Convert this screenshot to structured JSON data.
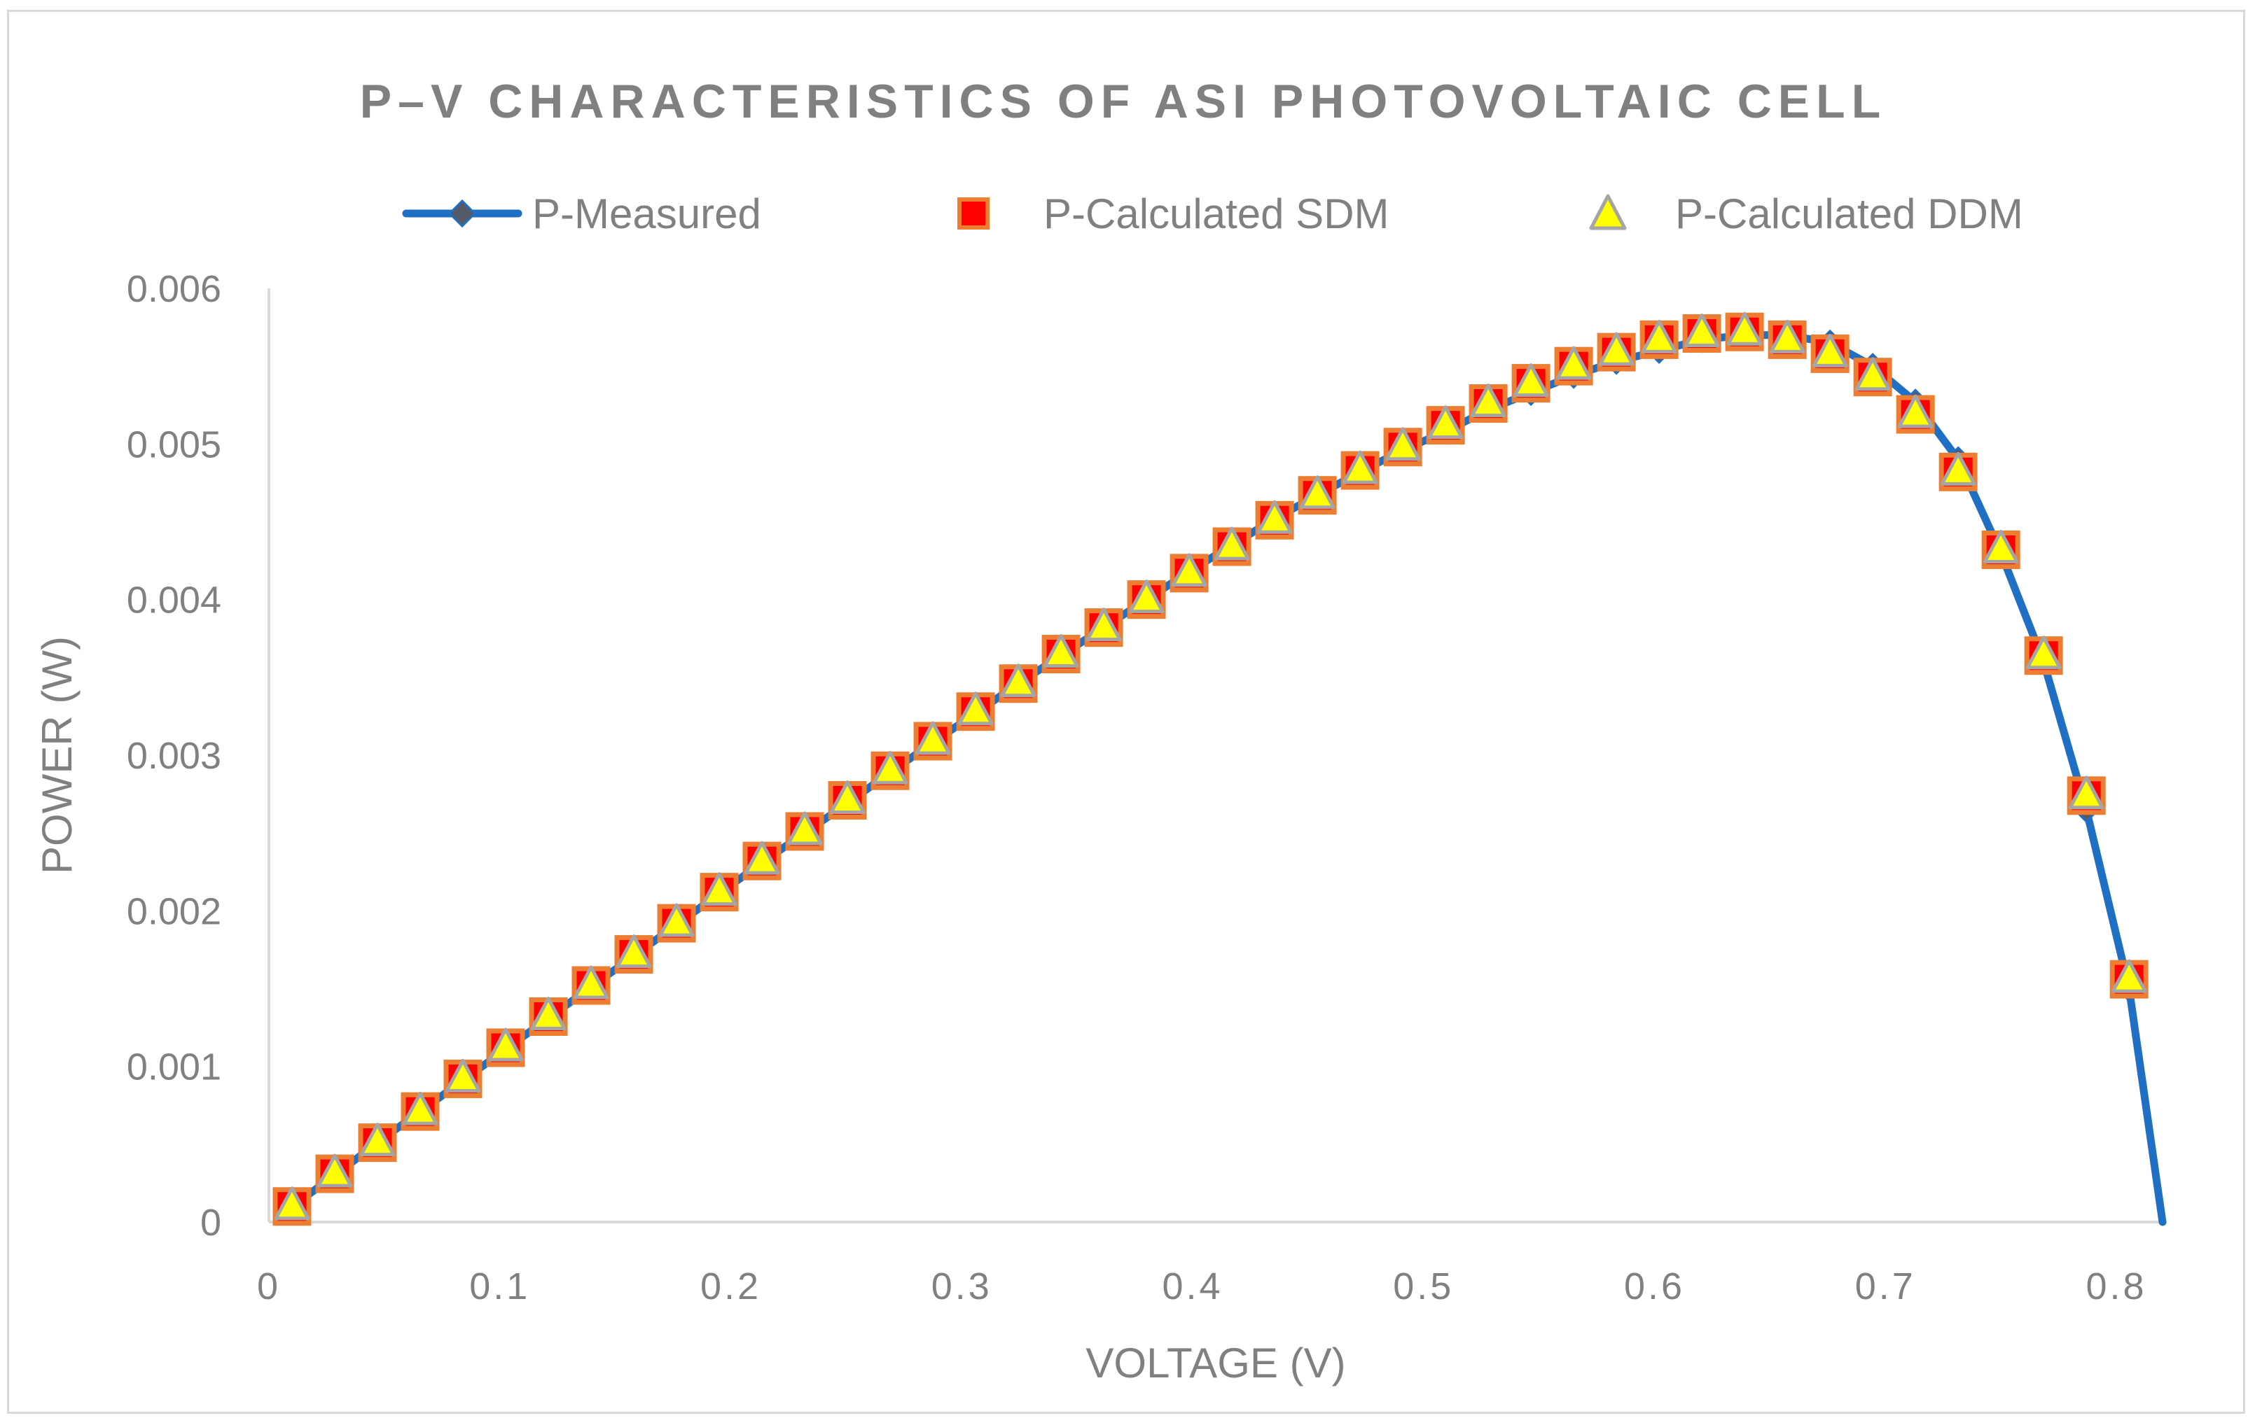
{
  "chart_data": {
    "type": "line",
    "title": "P–V CHARACTERISTICS OF ASI PHOTOVOLTAIC CELL",
    "xlabel": "VOLTAGE (V)",
    "ylabel": "POWER (W)",
    "xlim": [
      0,
      0.82
    ],
    "ylim": [
      0,
      0.006
    ],
    "grid": false,
    "legend_position": "top",
    "x_ticks": [
      "0",
      "0.1",
      "0.2",
      "0.3",
      "0.4",
      "0.5",
      "0.6",
      "0.7",
      "0.8"
    ],
    "y_ticks": [
      "0",
      "0.001",
      "0.002",
      "0.003",
      "0.004",
      "0.005",
      "0.006"
    ],
    "legend": [
      {
        "name": "P-Measured",
        "marker": "diamond-line"
      },
      {
        "name": "P-Calculated SDM",
        "marker": "square"
      },
      {
        "name": "P-Calculated DDM",
        "marker": "triangle"
      }
    ],
    "colors": {
      "measured_line": "#1f6fc5",
      "measured_marker": "#555a66",
      "sdm_fill": "#ff0000",
      "sdm_edge": "#ed7d31",
      "ddm_fill": "#ffff00",
      "ddm_edge": "#a5a5a5",
      "axis": "#d9d9d9",
      "text": "#808080"
    },
    "series": [
      {
        "name": "P-Measured",
        "x": [
          0.01,
          0.0285,
          0.047,
          0.0655,
          0.084,
          0.1025,
          0.121,
          0.1395,
          0.158,
          0.1765,
          0.195,
          0.2135,
          0.232,
          0.2505,
          0.269,
          0.2875,
          0.306,
          0.3245,
          0.343,
          0.3615,
          0.38,
          0.3985,
          0.417,
          0.4355,
          0.454,
          0.4725,
          0.491,
          0.5095,
          0.528,
          0.5465,
          0.565,
          0.5835,
          0.602,
          0.6205,
          0.639,
          0.6575,
          0.676,
          0.6945,
          0.713,
          0.7315,
          0.75,
          0.7685,
          0.787,
          0.8055,
          0.82
        ],
        "y": [
          0.0001,
          0.0003,
          0.00051,
          0.00071,
          0.00091,
          0.00111,
          0.00131,
          0.00151,
          0.00171,
          0.00191,
          0.00211,
          0.00231,
          0.0025,
          0.00269,
          0.00289,
          0.00308,
          0.00327,
          0.00346,
          0.00364,
          0.00382,
          0.004,
          0.00418,
          0.00435,
          0.00452,
          0.00467,
          0.00482,
          0.00496,
          0.00508,
          0.00522,
          0.00533,
          0.00544,
          0.00553,
          0.0056,
          0.00567,
          0.0057,
          0.0057,
          0.00565,
          0.0055,
          0.00527,
          0.0049,
          0.0043,
          0.0036,
          0.00265,
          0.0015,
          0.0
        ]
      },
      {
        "name": "P-Calculated SDM",
        "x": [
          0.01,
          0.0285,
          0.047,
          0.0655,
          0.084,
          0.1025,
          0.121,
          0.1395,
          0.158,
          0.1765,
          0.195,
          0.2135,
          0.232,
          0.2505,
          0.269,
          0.2875,
          0.306,
          0.3245,
          0.343,
          0.3615,
          0.38,
          0.3985,
          0.417,
          0.4355,
          0.454,
          0.4725,
          0.491,
          0.5095,
          0.528,
          0.5465,
          0.565,
          0.5835,
          0.602,
          0.6205,
          0.639,
          0.6575,
          0.676,
          0.6945,
          0.713,
          0.7315,
          0.75,
          0.7685,
          0.787,
          0.8055
        ],
        "y": [
          0.0001,
          0.00031,
          0.00051,
          0.00071,
          0.00092,
          0.00112,
          0.00132,
          0.00152,
          0.00172,
          0.00192,
          0.00212,
          0.00232,
          0.00251,
          0.00271,
          0.0029,
          0.00309,
          0.00328,
          0.00346,
          0.00365,
          0.00382,
          0.004,
          0.00417,
          0.00434,
          0.00451,
          0.00467,
          0.00483,
          0.00498,
          0.00512,
          0.00526,
          0.00539,
          0.0055,
          0.00559,
          0.00567,
          0.00571,
          0.00572,
          0.00567,
          0.00558,
          0.00543,
          0.00519,
          0.00482,
          0.00432,
          0.00364,
          0.00274,
          0.00156
        ]
      },
      {
        "name": "P-Calculated DDM",
        "x": [
          0.01,
          0.0285,
          0.047,
          0.0655,
          0.084,
          0.1025,
          0.121,
          0.1395,
          0.158,
          0.1765,
          0.195,
          0.2135,
          0.232,
          0.2505,
          0.269,
          0.2875,
          0.306,
          0.3245,
          0.343,
          0.3615,
          0.38,
          0.3985,
          0.417,
          0.4355,
          0.454,
          0.4725,
          0.491,
          0.5095,
          0.528,
          0.5465,
          0.565,
          0.5835,
          0.602,
          0.6205,
          0.639,
          0.6575,
          0.676,
          0.6945,
          0.713,
          0.7315,
          0.75,
          0.7685,
          0.787,
          0.8055
        ],
        "y": [
          0.0001,
          0.00031,
          0.00051,
          0.00071,
          0.00092,
          0.00112,
          0.00132,
          0.00152,
          0.00172,
          0.00192,
          0.00212,
          0.00232,
          0.00251,
          0.00271,
          0.0029,
          0.00309,
          0.00328,
          0.00346,
          0.00365,
          0.00382,
          0.004,
          0.00417,
          0.00434,
          0.00451,
          0.00467,
          0.00483,
          0.00498,
          0.00512,
          0.00526,
          0.00539,
          0.0055,
          0.00559,
          0.00567,
          0.00571,
          0.00572,
          0.00567,
          0.00558,
          0.00543,
          0.00519,
          0.00482,
          0.00432,
          0.00364,
          0.00274,
          0.00156
        ]
      }
    ]
  }
}
